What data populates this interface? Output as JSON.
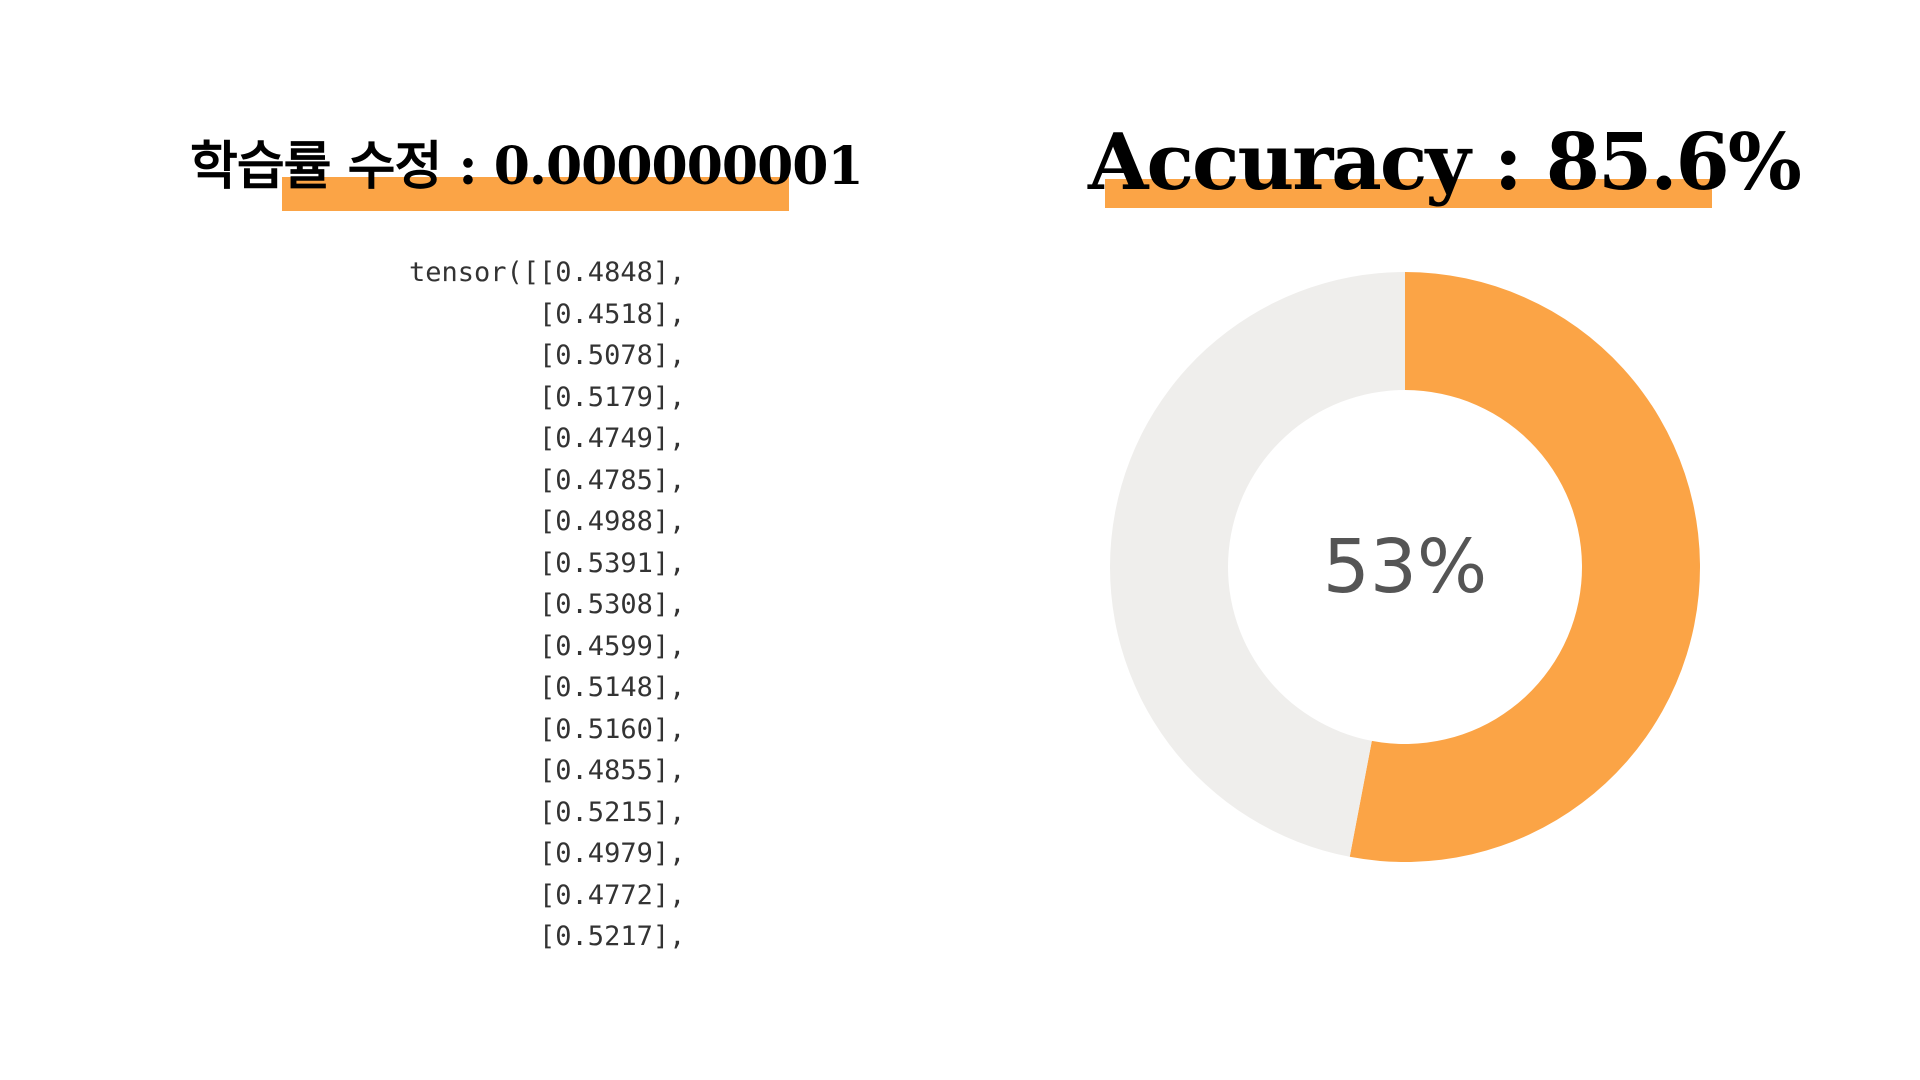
{
  "colors": {
    "accent": "#fba446",
    "track": "#efeeec",
    "label": "#555555"
  },
  "left_title": "학습률 수정 : 0.000000001",
  "right_title": "Accuracy : 85.6%",
  "tensor_lines": [
    "tensor([[0.4848],",
    "        [0.4518],",
    "        [0.5078],",
    "        [0.5179],",
    "        [0.4749],",
    "        [0.4785],",
    "        [0.4988],",
    "        [0.5391],",
    "        [0.5308],",
    "        [0.4599],",
    "        [0.5148],",
    "        [0.5160],",
    "        [0.4855],",
    "        [0.5215],",
    "        [0.4979],",
    "        [0.4772],",
    "        [0.5217],"
  ],
  "chart_data": {
    "type": "pie",
    "subtype": "donut",
    "center_label": "53%",
    "slices": [
      {
        "value": 53,
        "color": "#fba446"
      },
      {
        "value": 47,
        "color": "#efeeec"
      }
    ]
  }
}
